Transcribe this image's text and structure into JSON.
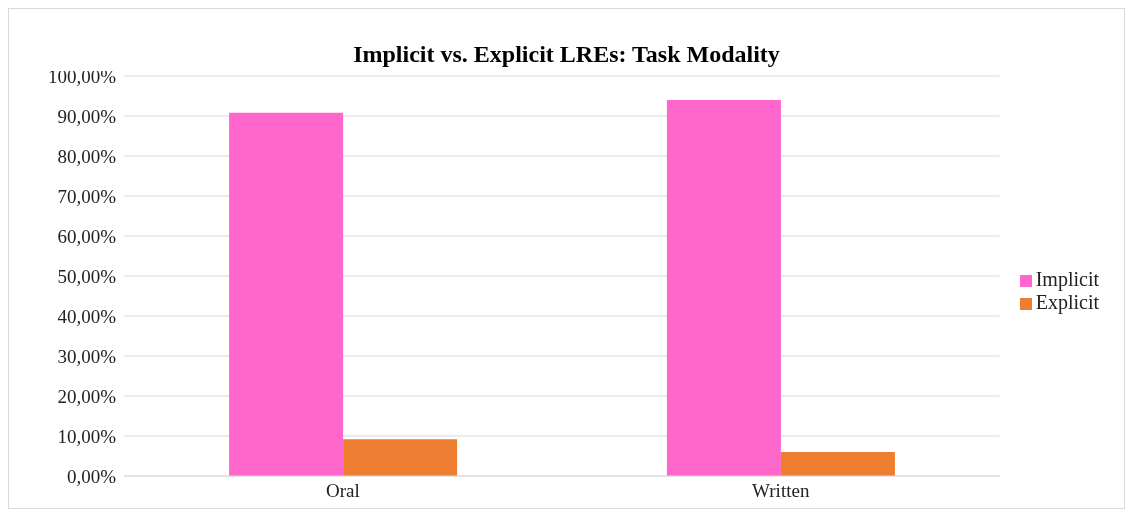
{
  "chart_data": {
    "type": "bar",
    "title": "Implicit vs. Explicit LREs: Task Modality",
    "categories": [
      "Oral",
      "Written"
    ],
    "series": [
      {
        "name": "Implicit",
        "color": "#ff66cc",
        "values": [
          90.8,
          94.0
        ]
      },
      {
        "name": "Explicit",
        "color": "#ed7d31",
        "values": [
          9.2,
          6.0
        ]
      }
    ],
    "ylim": [
      0,
      100
    ],
    "yticks": [
      {
        "value": 0,
        "label": "0,00%"
      },
      {
        "value": 10,
        "label": "10,00%"
      },
      {
        "value": 20,
        "label": "20,00%"
      },
      {
        "value": 30,
        "label": "30,00%"
      },
      {
        "value": 40,
        "label": "40,00%"
      },
      {
        "value": 50,
        "label": "50,00%"
      },
      {
        "value": 60,
        "label": "60,00%"
      },
      {
        "value": 70,
        "label": "70,00%"
      },
      {
        "value": 80,
        "label": "80,00%"
      },
      {
        "value": 90,
        "label": "90,00%"
      },
      {
        "value": 100,
        "label": "100,00%"
      }
    ],
    "grid": "y",
    "legend": "right"
  }
}
